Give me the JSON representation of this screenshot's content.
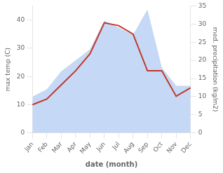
{
  "chart_data": {
    "type": "line",
    "xlabel": "date (month)",
    "ylabel": "max temp (C)",
    "y2label": "med. precipitation (kg/m2)",
    "categories": [
      "Jan",
      "Feb",
      "Mar",
      "Apr",
      "May",
      "Jun",
      "Jul",
      "Aug",
      "Sep",
      "Oct",
      "Nov",
      "Dec"
    ],
    "series": [
      {
        "type": "line",
        "color": "#c0392b",
        "values": [
          10,
          12,
          17,
          22,
          28,
          39,
          38,
          35,
          22,
          22,
          13,
          16
        ]
      },
      {
        "type": "area",
        "color": "#c5d8f5",
        "axis": "y2",
        "values": [
          10,
          12,
          17,
          20,
          23,
          31,
          29,
          27,
          34,
          18,
          13,
          13
        ]
      }
    ],
    "ylim": [
      0,
      45
    ],
    "yticks": [
      0,
      10,
      20,
      30,
      40
    ],
    "y2lim": [
      0,
      35
    ],
    "y2ticks": [
      0,
      5,
      10,
      15,
      20,
      25,
      30,
      35
    ],
    "grid": false
  }
}
